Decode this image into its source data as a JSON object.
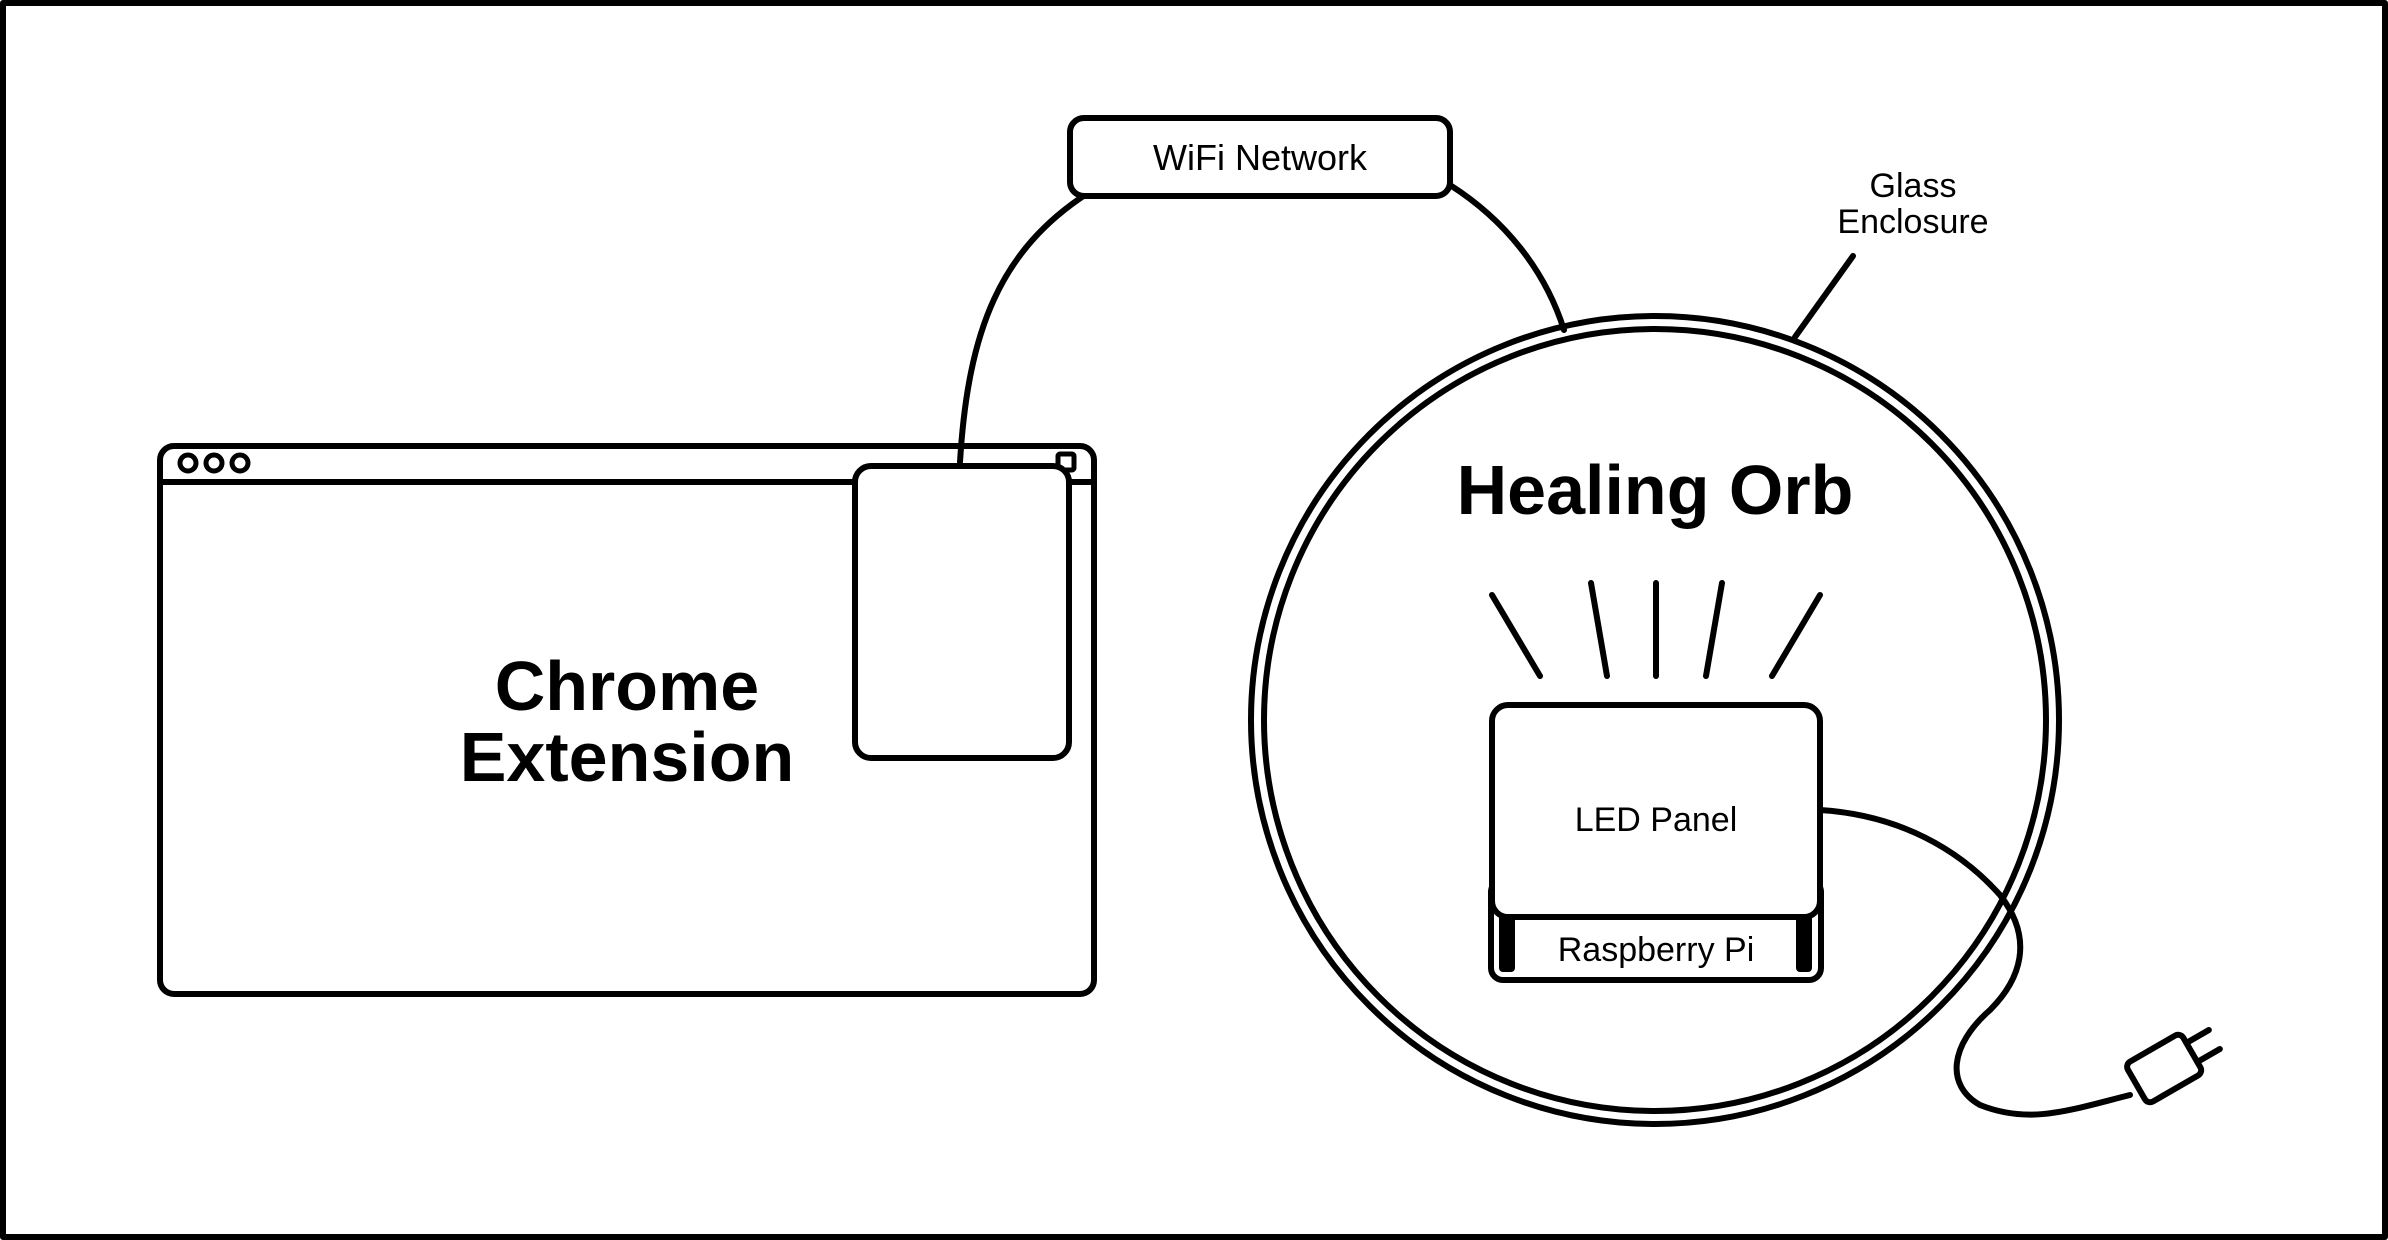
{
  "diagram": {
    "chrome_extension": {
      "line1": "Chrome",
      "line2": "Extension"
    },
    "wifi_network": "WiFi Network",
    "glass_enclosure": {
      "line1": "Glass",
      "line2": "Enclosure"
    },
    "healing_orb": "Healing Orb",
    "led_panel": "LED Panel",
    "raspberry_pi": "Raspberry Pi"
  },
  "colors": {
    "ink": "#000000",
    "background": "#ffffff"
  }
}
